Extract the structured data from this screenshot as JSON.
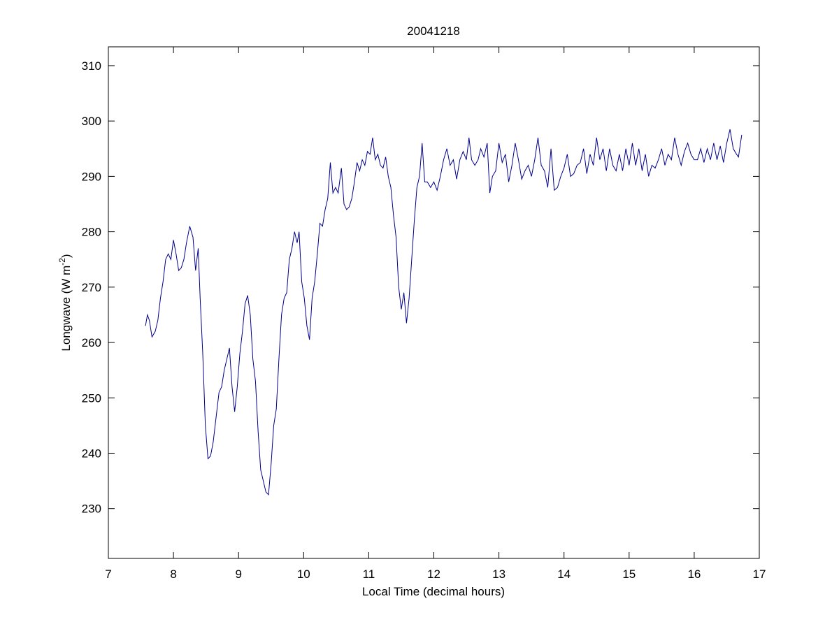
{
  "chart_data": {
    "type": "line",
    "title": "20041218",
    "xlabel": "Local Time (decimal hours)",
    "ylabel": {
      "text": "Longwave (W m",
      "superscript": "-2",
      "suffix": ")"
    },
    "color": "#00008b",
    "xlim": [
      7,
      17
    ],
    "xticks": [
      7,
      8,
      9,
      10,
      11,
      12,
      13,
      14,
      15,
      16,
      17
    ],
    "ylim": [
      221,
      313.4
    ],
    "yticks": [
      230,
      240,
      250,
      260,
      270,
      280,
      290,
      300,
      310
    ],
    "x": [
      7.57,
      7.6,
      7.63,
      7.67,
      7.72,
      7.76,
      7.8,
      7.84,
      7.88,
      7.92,
      7.96,
      8.0,
      8.04,
      8.08,
      8.12,
      8.16,
      8.2,
      8.25,
      8.3,
      8.34,
      8.38,
      8.41,
      8.45,
      8.49,
      8.53,
      8.57,
      8.61,
      8.65,
      8.7,
      8.74,
      8.78,
      8.82,
      8.86,
      8.9,
      8.94,
      8.98,
      9.02,
      9.06,
      9.1,
      9.14,
      9.18,
      9.22,
      9.26,
      9.3,
      9.34,
      9.38,
      9.42,
      9.46,
      9.5,
      9.54,
      9.58,
      9.62,
      9.66,
      9.7,
      9.74,
      9.78,
      9.82,
      9.86,
      9.9,
      9.93,
      9.97,
      10.01,
      10.05,
      10.09,
      10.13,
      10.17,
      10.21,
      10.25,
      10.29,
      10.33,
      10.37,
      10.41,
      10.45,
      10.49,
      10.53,
      10.58,
      10.62,
      10.66,
      10.7,
      10.74,
      10.78,
      10.82,
      10.86,
      10.9,
      10.94,
      10.98,
      11.02,
      11.06,
      11.1,
      11.14,
      11.18,
      11.22,
      11.26,
      11.3,
      11.34,
      11.38,
      11.42,
      11.46,
      11.5,
      11.54,
      11.58,
      11.62,
      11.66,
      11.7,
      11.74,
      11.78,
      11.82,
      11.86,
      11.9,
      11.95,
      12.0,
      12.05,
      12.1,
      12.15,
      12.2,
      12.25,
      12.3,
      12.35,
      12.4,
      12.45,
      12.5,
      12.54,
      12.58,
      12.63,
      12.68,
      12.72,
      12.77,
      12.82,
      12.86,
      12.9,
      12.95,
      13.0,
      13.05,
      13.1,
      13.15,
      13.2,
      13.25,
      13.3,
      13.35,
      13.4,
      13.45,
      13.5,
      13.55,
      13.6,
      13.65,
      13.7,
      13.75,
      13.8,
      13.85,
      13.9,
      13.95,
      14.0,
      14.05,
      14.1,
      14.15,
      14.2,
      14.25,
      14.3,
      14.35,
      14.4,
      14.45,
      14.5,
      14.55,
      14.6,
      14.65,
      14.7,
      14.75,
      14.8,
      14.85,
      14.9,
      14.95,
      15.0,
      15.05,
      15.1,
      15.15,
      15.2,
      15.25,
      15.3,
      15.35,
      15.4,
      15.45,
      15.5,
      15.55,
      15.6,
      15.65,
      15.7,
      15.75,
      15.8,
      15.85,
      15.9,
      15.95,
      16.0,
      16.05,
      16.1,
      16.15,
      16.2,
      16.25,
      16.3,
      16.35,
      16.4,
      16.45,
      16.5,
      16.55,
      16.6,
      16.65,
      16.68,
      16.73
    ],
    "values": [
      263,
      265,
      264,
      261,
      262,
      264,
      268,
      271,
      275,
      276,
      275,
      278.5,
      276,
      273,
      273.5,
      275,
      278,
      281,
      279,
      273,
      277,
      268,
      258,
      245,
      239,
      239.5,
      242,
      246,
      251,
      252,
      255,
      257,
      259,
      252,
      247.5,
      252,
      258,
      262,
      267,
      268.5,
      265,
      257,
      253,
      244,
      237,
      235,
      233,
      232.5,
      238,
      245,
      248,
      257,
      265,
      268,
      269,
      275,
      277,
      280,
      278,
      280,
      271,
      268,
      263,
      260.5,
      268,
      271,
      276,
      281.5,
      281,
      284,
      286,
      292.5,
      287,
      288,
      287,
      291.5,
      285,
      284,
      284.5,
      286,
      289,
      292.5,
      291,
      293,
      292,
      294.5,
      294,
      297,
      293,
      294,
      292,
      291.5,
      293.5,
      290,
      288,
      283,
      279,
      270,
      266,
      269,
      263.5,
      268,
      275,
      282,
      288,
      290,
      296,
      289,
      289,
      288,
      289,
      287.5,
      290,
      293,
      295,
      292,
      293,
      289.5,
      293,
      294.5,
      293,
      297,
      293,
      292,
      293,
      295,
      293.5,
      296,
      287,
      290,
      291,
      296,
      292.5,
      294,
      289,
      292,
      296,
      293,
      289.5,
      291,
      292,
      290,
      293,
      297,
      292,
      291,
      288,
      295,
      287.5,
      288,
      290,
      291.5,
      294,
      290,
      290.5,
      292,
      292.5,
      295,
      290.5,
      294,
      292,
      297,
      293,
      295,
      291,
      295,
      292,
      291,
      294,
      291,
      295,
      292,
      296,
      292,
      295,
      291,
      294,
      290,
      292,
      291.5,
      293,
      295,
      292,
      294,
      293,
      297,
      294,
      292,
      294.5,
      296,
      294,
      293,
      293,
      295,
      292.5,
      295,
      293,
      296,
      293,
      295.5,
      292.5,
      296,
      298.5,
      295,
      294,
      293.5,
      297.5
    ]
  }
}
